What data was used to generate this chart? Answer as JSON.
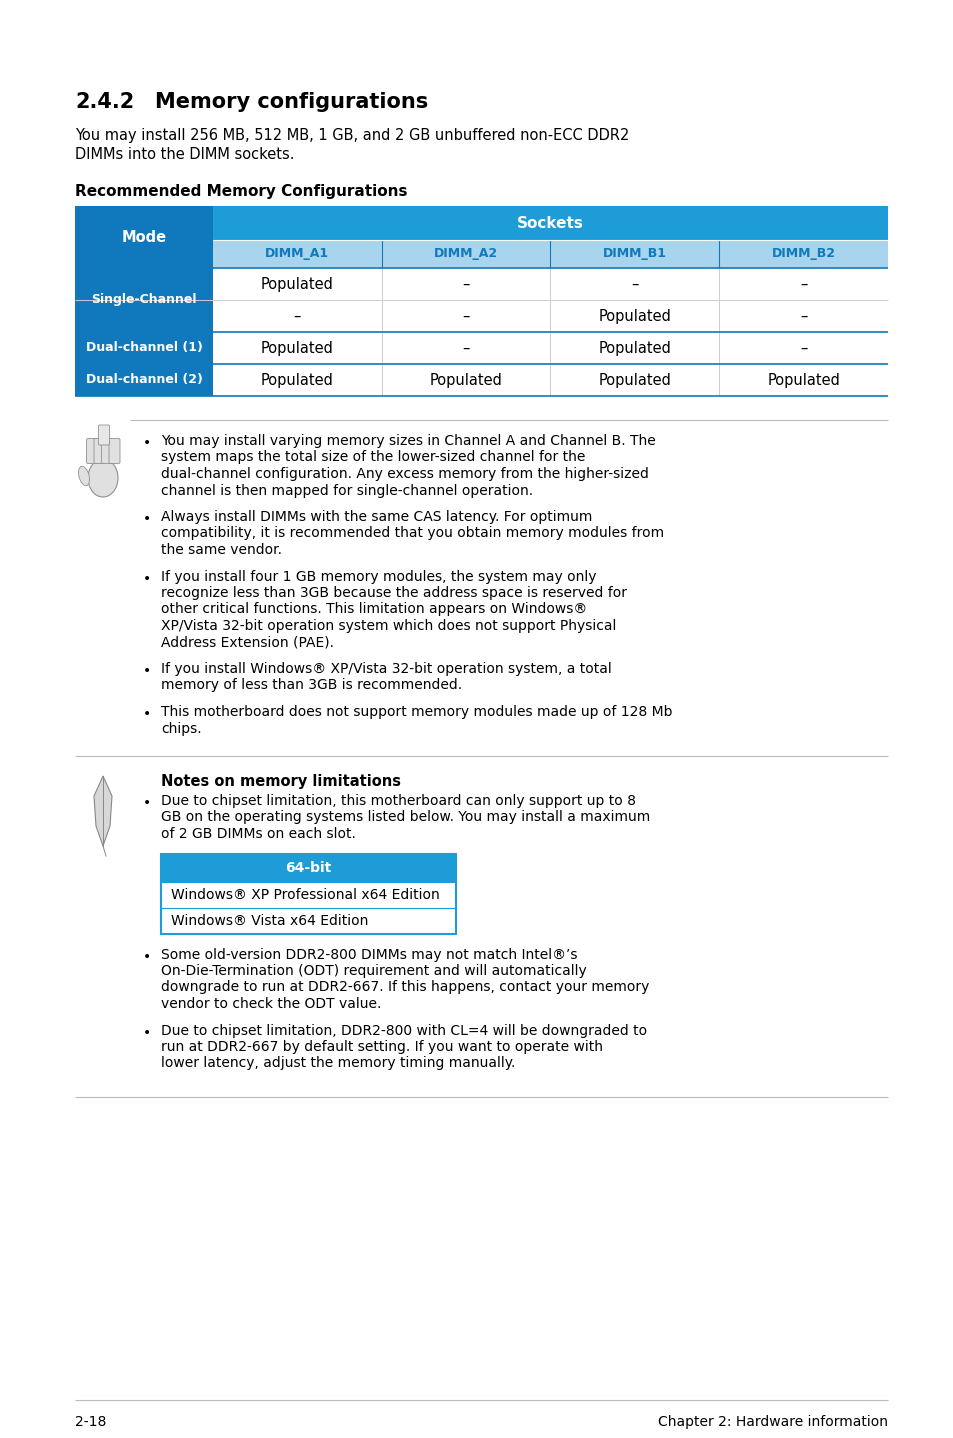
{
  "title_number": "2.4.2",
  "title_text": "Memory configurations",
  "intro_text": "You may install 256 MB, 512 MB, 1 GB, and 2 GB unbuffered non-ECC DDR2\nDIMMs into the DIMM sockets.",
  "table_title": "Recommended Memory Configurations",
  "table_header_top": "Sockets",
  "table_col_headers": [
    "DIMM_A1",
    "DIMM_A2",
    "DIMM_B1",
    "DIMM_B2"
  ],
  "table_row_label_col": "Mode",
  "blue_dark": "#1079be",
  "blue_medium": "#1e9cd7",
  "blue_light": "#a8d4ed",
  "notes_title": "Notes on memory limitations",
  "bit_table_header": "64-bit",
  "bit_table_rows": [
    "Windows® XP Professional x64 Edition",
    "Windows® Vista x64 Edition"
  ],
  "bullet_items_section1": [
    "You may install varying memory sizes in Channel A and Channel B. The system maps the total size of the lower-sized channel for the dual-channel configuration. Any excess memory from the higher-sized channel is then mapped for single-channel operation.",
    "Always install DIMMs with the same CAS latency. For optimum compatibility, it is recommended that you obtain memory modules from the same vendor.",
    "If you install four 1 GB memory modules, the system may only recognize less than 3GB because the address space is reserved for other critical functions. This limitation appears on Windows® XP/Vista 32-bit operation system which does not support Physical Address Extension (PAE).",
    "If you install Windows® XP/Vista 32-bit operation system, a total memory of less than 3GB is recommended.",
    "This motherboard does not support memory modules made up of 128 Mb chips."
  ],
  "bullet_items_section2": [
    "Due to chipset limitation, this motherboard can only support up to 8 GB on the operating systems listed below. You may install a maximum of 2 GB DIMMs on each slot.",
    "Some old-version DDR2-800 DIMMs may not match Intel®’s On-Die-Termination (ODT) requirement and will automatically downgrade to run at DDR2-667. If this happens, contact your memory vendor to check the ODT value.",
    "Due to chipset limitation, DDR2-800 with CL=4 will be downgraded to run at DDR2-667 by default setting. If you want to operate with lower latency, adjust the memory timing manually."
  ],
  "footer_left": "2-18",
  "footer_right": "Chapter 2: Hardware information",
  "bg_color": "#ffffff"
}
